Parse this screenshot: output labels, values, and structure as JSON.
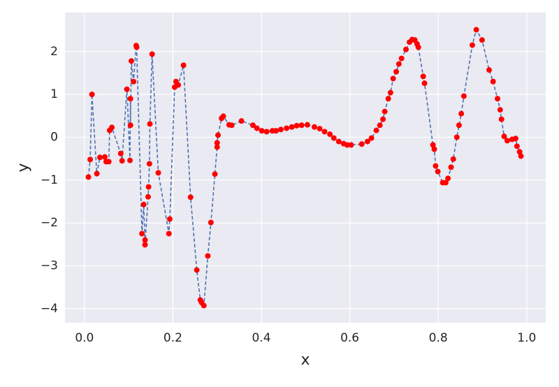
{
  "chart_data": {
    "type": "scatter",
    "x_label": "x",
    "y_label": "y",
    "x": [
      0.009,
      0.013,
      0.017,
      0.028,
      0.035,
      0.046,
      0.049,
      0.055,
      0.057,
      0.062,
      0.082,
      0.085,
      0.096,
      0.103,
      0.104,
      0.104,
      0.106,
      0.111,
      0.117,
      0.118,
      0.13,
      0.134,
      0.137,
      0.137,
      0.144,
      0.145,
      0.147,
      0.148,
      0.153,
      0.167,
      0.191,
      0.193,
      0.204,
      0.207,
      0.212,
      0.224,
      0.24,
      0.254,
      0.262,
      0.265,
      0.27,
      0.279,
      0.286,
      0.295,
      0.3,
      0.3,
      0.302,
      0.31,
      0.314,
      0.327,
      0.333,
      0.355,
      0.381,
      0.39,
      0.401,
      0.412,
      0.425,
      0.433,
      0.444,
      0.457,
      0.469,
      0.48,
      0.491,
      0.504,
      0.52,
      0.532,
      0.543,
      0.555,
      0.564,
      0.575,
      0.586,
      0.594,
      0.603,
      0.627,
      0.64,
      0.649,
      0.66,
      0.668,
      0.675,
      0.679,
      0.687,
      0.692,
      0.698,
      0.705,
      0.711,
      0.717,
      0.727,
      0.735,
      0.741,
      0.747,
      0.752,
      0.755,
      0.766,
      0.769,
      0.788,
      0.791,
      0.794,
      0.799,
      0.81,
      0.817,
      0.822,
      0.829,
      0.834,
      0.842,
      0.847,
      0.852,
      0.858,
      0.877,
      0.886,
      0.899,
      0.915,
      0.924,
      0.934,
      0.94,
      0.943,
      0.949,
      0.956,
      0.967,
      0.975,
      0.978,
      0.984,
      0.987
    ],
    "values": [
      -0.93,
      -0.52,
      1.0,
      -0.85,
      -0.47,
      -0.46,
      -0.57,
      -0.57,
      0.16,
      0.23,
      -0.38,
      -0.55,
      1.12,
      -0.54,
      0.9,
      0.28,
      1.78,
      1.3,
      2.14,
      2.1,
      -2.25,
      -1.57,
      -2.4,
      -2.51,
      -1.39,
      -1.16,
      -0.62,
      0.31,
      1.94,
      -0.83,
      -2.25,
      -1.91,
      1.17,
      1.3,
      1.22,
      1.68,
      -1.4,
      -3.1,
      -3.8,
      -3.86,
      -3.93,
      -2.77,
      -1.99,
      -0.86,
      -0.23,
      -0.13,
      0.05,
      0.44,
      0.49,
      0.29,
      0.28,
      0.38,
      0.28,
      0.21,
      0.15,
      0.13,
      0.15,
      0.15,
      0.18,
      0.21,
      0.24,
      0.27,
      0.28,
      0.29,
      0.24,
      0.2,
      0.13,
      0.07,
      -0.02,
      -0.1,
      -0.15,
      -0.18,
      -0.18,
      -0.16,
      -0.1,
      -0.02,
      0.16,
      0.28,
      0.42,
      0.6,
      0.9,
      1.04,
      1.37,
      1.53,
      1.71,
      1.84,
      2.05,
      2.22,
      2.28,
      2.27,
      2.18,
      2.1,
      1.42,
      1.26,
      -0.18,
      -0.28,
      -0.67,
      -0.8,
      -1.06,
      -1.06,
      -0.96,
      -0.7,
      -0.51,
      0.0,
      0.28,
      0.55,
      0.96,
      2.15,
      2.51,
      2.27,
      1.57,
      1.3,
      0.9,
      0.64,
      0.42,
      0.02,
      -0.08,
      -0.05,
      -0.03,
      -0.21,
      -0.34,
      -0.44
    ],
    "color": "#ff0000",
    "line_color": "#4c72b0",
    "line_style": "dashed",
    "xlim": [
      -0.044,
      1.043
    ],
    "ylim": [
      -4.33,
      2.91
    ],
    "xticks": [
      {
        "value": 0,
        "label": "0.0"
      },
      {
        "value": 0.2,
        "label": "0.2"
      },
      {
        "value": 0.4,
        "label": "0.4"
      },
      {
        "value": 0.6,
        "label": "0.6"
      },
      {
        "value": 0.8,
        "label": "0.8"
      },
      {
        "value": 1,
        "label": "1.0"
      }
    ],
    "yticks": [
      {
        "value": -4,
        "label": "−4"
      },
      {
        "value": -3,
        "label": "−3"
      },
      {
        "value": -2,
        "label": "−2"
      },
      {
        "value": -1,
        "label": "−1"
      },
      0,
      1,
      2
    ],
    "grid": true
  }
}
